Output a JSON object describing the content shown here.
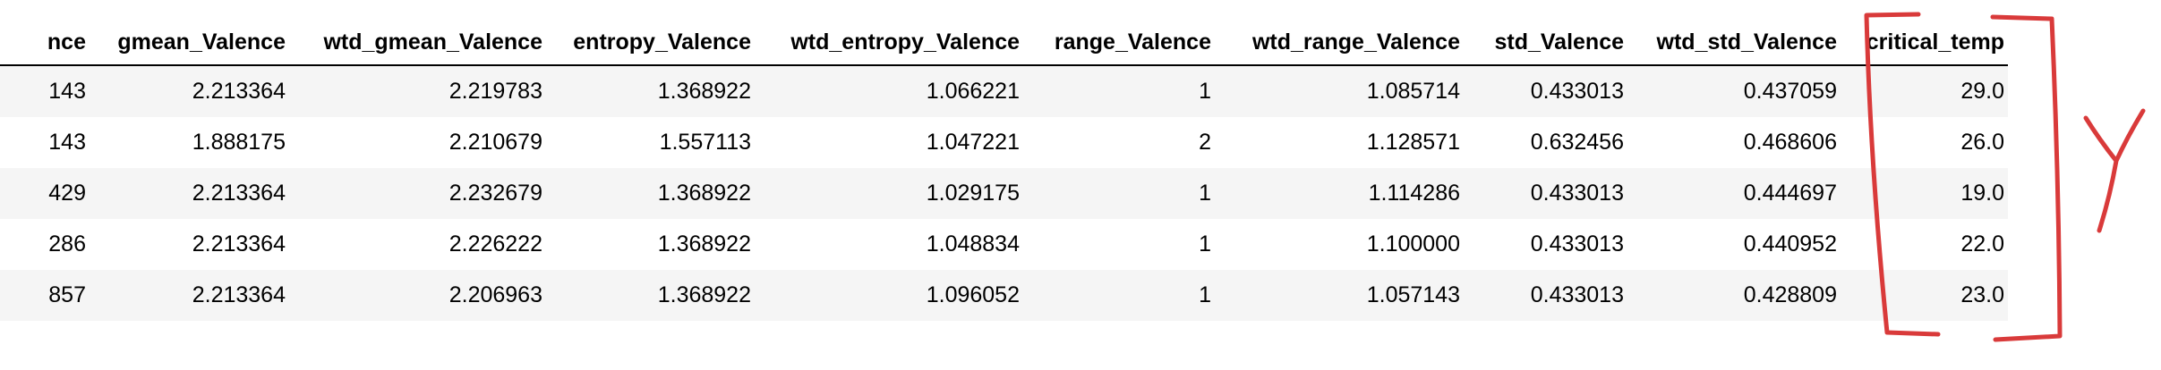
{
  "table": {
    "columns": [
      "nce",
      "gmean_Valence",
      "wtd_gmean_Valence",
      "entropy_Valence",
      "wtd_entropy_Valence",
      "range_Valence",
      "wtd_range_Valence",
      "std_Valence",
      "wtd_std_Valence",
      "critical_temp"
    ],
    "rows": [
      [
        "143",
        "2.213364",
        "2.219783",
        "1.368922",
        "1.066221",
        "1",
        "1.085714",
        "0.433013",
        "0.437059",
        "29.0"
      ],
      [
        "143",
        "1.888175",
        "2.210679",
        "1.557113",
        "1.047221",
        "2",
        "1.128571",
        "0.632456",
        "0.468606",
        "26.0"
      ],
      [
        "429",
        "2.213364",
        "2.232679",
        "1.368922",
        "1.029175",
        "1",
        "1.114286",
        "0.433013",
        "0.444697",
        "19.0"
      ],
      [
        "286",
        "2.213364",
        "2.226222",
        "1.368922",
        "1.048834",
        "1",
        "1.100000",
        "0.433013",
        "0.440952",
        "22.0"
      ],
      [
        "857",
        "2.213364",
        "2.206963",
        "1.368922",
        "1.096052",
        "1",
        "1.057143",
        "0.433013",
        "0.428809",
        "23.0"
      ]
    ]
  },
  "annotation": {
    "label": "Y",
    "color": "#d93a3a"
  }
}
